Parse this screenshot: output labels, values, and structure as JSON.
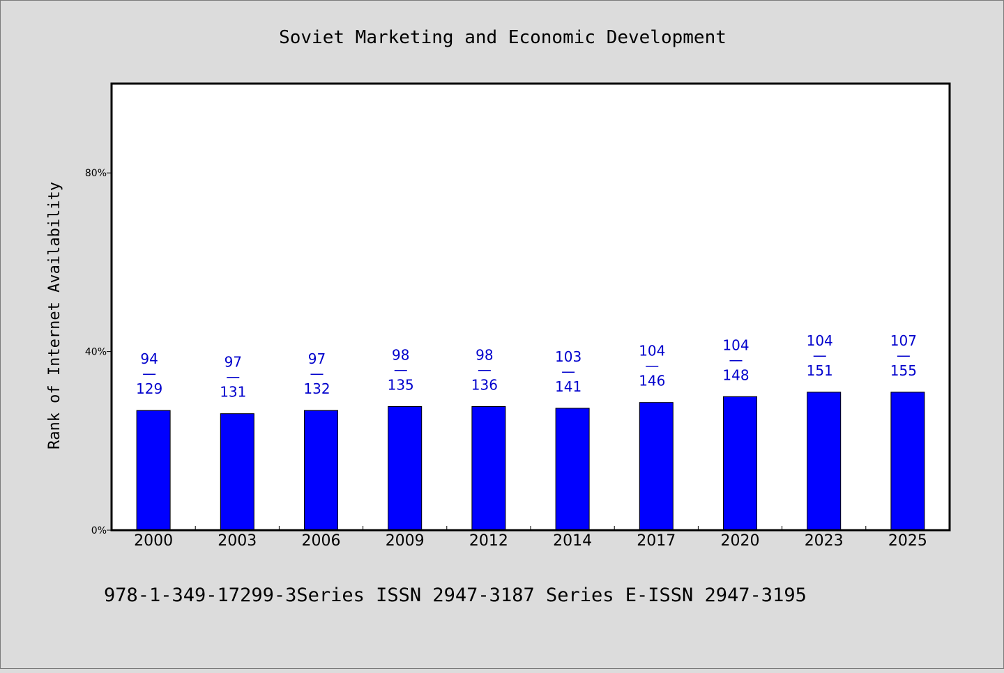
{
  "chart_data": {
    "type": "bar",
    "title": "Soviet Marketing and Economic Development",
    "ylabel": "Rank of Internet Availability",
    "xlabel": "",
    "ylim": [
      0,
      100
    ],
    "yticks": [
      0,
      40,
      80
    ],
    "ytick_labels": [
      "0%",
      "40%",
      "80%"
    ],
    "categories": [
      "2000",
      "2003",
      "2006",
      "2009",
      "2012",
      "2014",
      "2017",
      "2020",
      "2023",
      "2025"
    ],
    "values": [
      26.8,
      26.1,
      26.8,
      27.7,
      27.7,
      27.3,
      28.6,
      29.9,
      30.9,
      30.9
    ],
    "labels_top": [
      "94",
      "97",
      "97",
      "98",
      "98",
      "103",
      "104",
      "104",
      "104",
      "107"
    ],
    "labels_mid": [
      "—",
      "—",
      "—",
      "—",
      "—",
      "—",
      "—",
      "—",
      "—",
      "—"
    ],
    "labels_bottom": [
      "129",
      "131",
      "132",
      "135",
      "136",
      "141",
      "146",
      "148",
      "151",
      "155"
    ],
    "bar_color": "#0000ff",
    "label_color": "#0000cc",
    "grid": false,
    "legend": "none"
  },
  "footer": "978-1-349-17299-3Series ISSN 2947-3187 Series E-ISSN 2947-3195"
}
